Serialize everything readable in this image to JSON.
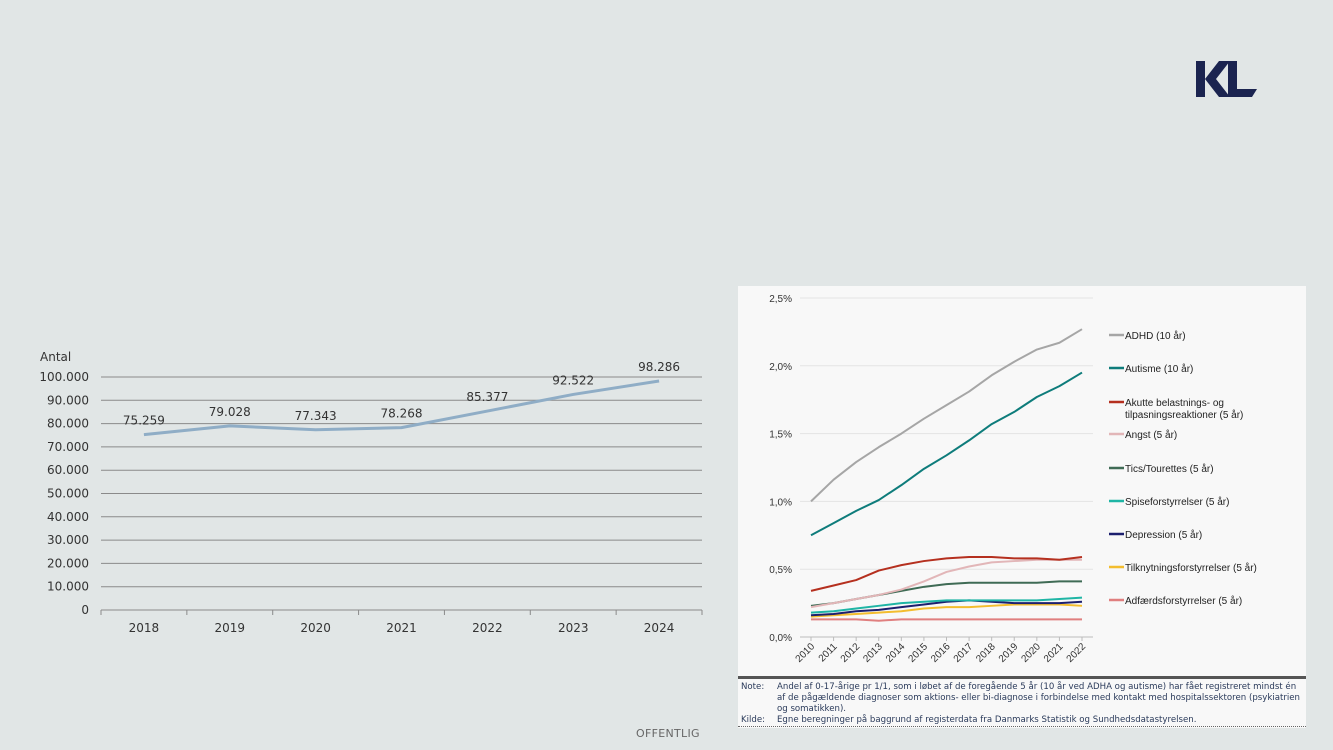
{
  "logo": {
    "text": "KL",
    "color": "#1b2450"
  },
  "footer": {
    "classification": "OFFENTLIG"
  },
  "chart_data": [
    {
      "type": "line",
      "title": "",
      "ylabel": "Antal",
      "xlabel": "",
      "categories": [
        "2018",
        "2019",
        "2020",
        "2021",
        "2022",
        "2023",
        "2024"
      ],
      "values": [
        75259,
        79028,
        77343,
        78268,
        85377,
        92522,
        98286
      ],
      "data_labels": [
        "75.259",
        "79.028",
        "77.343",
        "78.268",
        "85.377",
        "92.522",
        "98.286"
      ],
      "ylim": [
        0,
        100000
      ],
      "yticks": [
        0,
        10000,
        20000,
        30000,
        40000,
        50000,
        60000,
        70000,
        80000,
        90000,
        100000
      ],
      "ytick_labels": [
        "0",
        "10.000",
        "20.000",
        "30.000",
        "40.000",
        "50.000",
        "60.000",
        "70.000",
        "80.000",
        "90.000",
        "100.000"
      ],
      "grid": true,
      "line_color": "#8fadc6"
    },
    {
      "type": "line",
      "title": "",
      "xlabel": "",
      "ylabel": "",
      "x": [
        "2010",
        "2011",
        "2012",
        "2013",
        "2014",
        "2015",
        "2016",
        "2017",
        "2018",
        "2019",
        "2020",
        "2021",
        "2022"
      ],
      "ylim": [
        0,
        2.5
      ],
      "yticks": [
        0,
        0.5,
        1.0,
        1.5,
        2.0,
        2.5
      ],
      "ytick_labels": [
        "0,0%",
        "0,5%",
        "1,0%",
        "1,5%",
        "2,0%",
        "2,5%"
      ],
      "grid": true,
      "legend": "right",
      "series": [
        {
          "name": "ADHD (10 år)",
          "color": "#a6a6a6",
          "values": [
            1.0,
            1.16,
            1.29,
            1.4,
            1.5,
            1.61,
            1.71,
            1.81,
            1.93,
            2.03,
            2.12,
            2.17,
            2.27
          ]
        },
        {
          "name": "Autisme (10 år)",
          "color": "#0e7c7b",
          "values": [
            0.75,
            0.84,
            0.93,
            1.01,
            1.12,
            1.24,
            1.34,
            1.45,
            1.57,
            1.66,
            1.77,
            1.85,
            1.95
          ]
        },
        {
          "name": "Akutte belastnings- og tilpasningsreaktioner (5 år)",
          "color": "#b5301f",
          "values": [
            0.34,
            0.38,
            0.42,
            0.49,
            0.53,
            0.56,
            0.58,
            0.59,
            0.59,
            0.58,
            0.58,
            0.57,
            0.59
          ]
        },
        {
          "name": "Angst (5 år)",
          "color": "#e2b6b8",
          "values": [
            0.22,
            0.25,
            0.28,
            0.31,
            0.35,
            0.41,
            0.48,
            0.52,
            0.55,
            0.56,
            0.57,
            0.57,
            0.57
          ]
        },
        {
          "name": "Tics/Tourettes (5 år)",
          "color": "#3f6b55",
          "values": [
            0.23,
            0.25,
            0.28,
            0.31,
            0.34,
            0.37,
            0.39,
            0.4,
            0.4,
            0.4,
            0.4,
            0.41,
            0.41
          ]
        },
        {
          "name": "Spiseforstyrrelser (5 år)",
          "color": "#1fb5a5",
          "values": [
            0.18,
            0.19,
            0.21,
            0.23,
            0.25,
            0.26,
            0.27,
            0.27,
            0.27,
            0.27,
            0.27,
            0.28,
            0.29
          ]
        },
        {
          "name": "Depression (5 år)",
          "color": "#1c1f6e",
          "values": [
            0.16,
            0.17,
            0.19,
            0.2,
            0.22,
            0.24,
            0.26,
            0.27,
            0.26,
            0.25,
            0.25,
            0.25,
            0.26
          ]
        },
        {
          "name": "Tilknytningsforstyrrelser (5 år)",
          "color": "#f3bd2e",
          "values": [
            0.15,
            0.16,
            0.17,
            0.18,
            0.19,
            0.21,
            0.22,
            0.22,
            0.23,
            0.24,
            0.24,
            0.24,
            0.23
          ]
        },
        {
          "name": "Adfærdsforstyrrelser (5 år)",
          "color": "#e07f7f",
          "values": [
            0.13,
            0.13,
            0.13,
            0.12,
            0.13,
            0.13,
            0.13,
            0.13,
            0.13,
            0.13,
            0.13,
            0.13,
            0.13
          ]
        }
      ],
      "legend_labels": {
        "akutte_line1": "Akutte belastnings- og",
        "akutte_line2": "tilpasningsreaktioner (5 år)"
      }
    }
  ],
  "note": {
    "note_label": "Note:",
    "note_text": "Andel af 0-17-årige pr 1/1, som i løbet af de foregående 5 år (10 år ved ADHA og autisme) har fået registreret mindst én af de pågældende diagnoser som aktions- eller bi-diagnose i forbindelse med kontakt med hospitalssektoren (psykiatrien og somatikken).",
    "source_label": "Kilde:",
    "source_text": "Egne beregninger på baggrund af registerdata fra Danmarks Statistik og Sundhedsdatastyrelsen."
  }
}
